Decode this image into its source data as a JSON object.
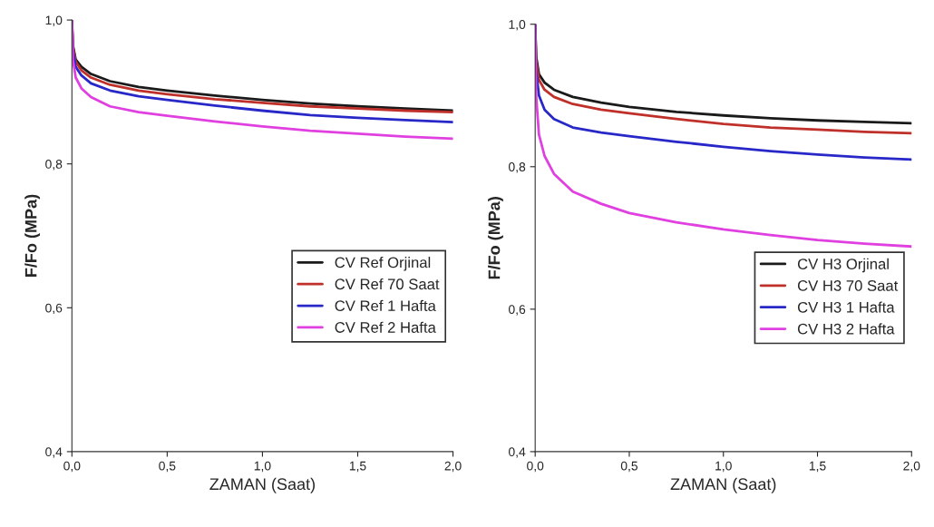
{
  "chart_data": [
    {
      "type": "line",
      "xlabel": "ZAMAN (Saat)",
      "ylabel": "F/Fo (MPa)",
      "legend": "right",
      "grid": false,
      "x": [
        0,
        0.005,
        0.02,
        0.05,
        0.1,
        0.2,
        0.35,
        0.5,
        0.75,
        1.0,
        1.25,
        1.5,
        1.75,
        2.0
      ],
      "xlim": [
        0,
        2
      ],
      "ylim": [
        0.4,
        1.0
      ],
      "xticks": [
        {
          "value": 0,
          "label": "0,0"
        },
        {
          "value": 0.5,
          "label": "0,5"
        },
        {
          "value": 1.0,
          "label": "1,0"
        },
        {
          "value": 1.5,
          "label": "1,5"
        },
        {
          "value": 2.0,
          "label": "2,0"
        }
      ],
      "yticks": [
        {
          "value": 0.4,
          "label": "0,4"
        },
        {
          "value": 0.6,
          "label": "0,6"
        },
        {
          "value": 0.8,
          "label": "0,8"
        },
        {
          "value": 1.0,
          "label": "1,0"
        }
      ],
      "series": [
        {
          "name": "CV Ref Orjinal",
          "color": "#1a1a1a",
          "values": [
            1.0,
            0.965,
            0.945,
            0.935,
            0.925,
            0.915,
            0.907,
            0.902,
            0.895,
            0.889,
            0.884,
            0.88,
            0.877,
            0.874
          ]
        },
        {
          "name": "CV Ref 70 Saat",
          "color": "#c0302a",
          "values": [
            1.0,
            0.962,
            0.942,
            0.93,
            0.92,
            0.91,
            0.902,
            0.897,
            0.89,
            0.885,
            0.88,
            0.877,
            0.874,
            0.872
          ]
        },
        {
          "name": "CV Ref 1 Hafta",
          "color": "#2828c8",
          "values": [
            1.0,
            0.958,
            0.935,
            0.923,
            0.912,
            0.902,
            0.894,
            0.889,
            0.881,
            0.874,
            0.868,
            0.864,
            0.861,
            0.858
          ]
        },
        {
          "name": "CV Ref 2 Hafta",
          "color": "#e040e0",
          "values": [
            1.0,
            0.945,
            0.92,
            0.905,
            0.893,
            0.88,
            0.872,
            0.867,
            0.859,
            0.852,
            0.846,
            0.842,
            0.838,
            0.835
          ]
        }
      ]
    },
    {
      "type": "line",
      "xlabel": "ZAMAN (Saat)",
      "ylabel": "F/Fo (MPa)",
      "legend": "right",
      "grid": false,
      "x": [
        0,
        0.005,
        0.02,
        0.05,
        0.1,
        0.2,
        0.35,
        0.5,
        0.75,
        1.0,
        1.25,
        1.5,
        1.75,
        2.0
      ],
      "xlim": [
        0,
        2
      ],
      "ylim": [
        0.4,
        1.0
      ],
      "xticks": [
        {
          "value": 0,
          "label": "0,0"
        },
        {
          "value": 0.5,
          "label": "0,5"
        },
        {
          "value": 1.0,
          "label": "1,0"
        },
        {
          "value": 1.5,
          "label": "1,5"
        },
        {
          "value": 2.0,
          "label": "2,0"
        }
      ],
      "yticks": [
        {
          "value": 0.4,
          "label": "0,4"
        },
        {
          "value": 0.6,
          "label": "0,6"
        },
        {
          "value": 0.8,
          "label": "0,8"
        },
        {
          "value": 1.0,
          "label": "1,0"
        }
      ],
      "series": [
        {
          "name": "CV H3 Orjinal",
          "color": "#1a1a1a",
          "values": [
            1.0,
            0.955,
            0.93,
            0.918,
            0.908,
            0.898,
            0.89,
            0.884,
            0.877,
            0.872,
            0.868,
            0.865,
            0.863,
            0.861
          ]
        },
        {
          "name": "CV H3 70 Saat",
          "color": "#c0302a",
          "values": [
            1.0,
            0.95,
            0.922,
            0.908,
            0.898,
            0.888,
            0.88,
            0.875,
            0.867,
            0.86,
            0.855,
            0.852,
            0.849,
            0.847
          ]
        },
        {
          "name": "CV H3 1 Hafta",
          "color": "#2828c8",
          "values": [
            1.0,
            0.935,
            0.9,
            0.88,
            0.867,
            0.855,
            0.848,
            0.843,
            0.835,
            0.828,
            0.822,
            0.817,
            0.813,
            0.81
          ]
        },
        {
          "name": "CV H3 2 Hafta",
          "color": "#e040e0",
          "values": [
            1.0,
            0.9,
            0.845,
            0.815,
            0.79,
            0.765,
            0.748,
            0.735,
            0.722,
            0.712,
            0.704,
            0.697,
            0.692,
            0.688
          ]
        }
      ]
    }
  ]
}
